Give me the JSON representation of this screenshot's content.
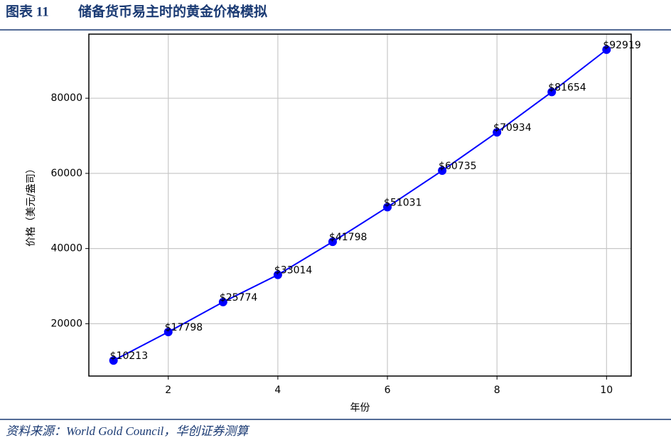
{
  "header": {
    "figure_no": "图表 11",
    "title": "储备货币易主时的黄金价格模拟"
  },
  "chart_data": {
    "type": "line",
    "x": [
      1,
      2,
      3,
      4,
      5,
      6,
      7,
      8,
      9,
      10
    ],
    "series": [
      {
        "color": "#0000ff",
        "values": [
          10213,
          17798,
          25774,
          33014,
          41798,
          51031,
          60735,
          70934,
          81654,
          92919
        ],
        "value_labels": [
          "$10213",
          "$17798",
          "$25774",
          "$33014",
          "$41798",
          "$51031",
          "$60735",
          "$70934",
          "$81654",
          "$92919"
        ]
      }
    ],
    "xlabel": "年份",
    "ylabel": "价格（美元/盎司）",
    "xlim": [
      0.55,
      10.45
    ],
    "ylim": [
      6078,
      97054
    ],
    "xticks": [
      2,
      4,
      6,
      8,
      10
    ],
    "yticks": [
      20000,
      40000,
      60000,
      80000
    ],
    "grid": true
  },
  "footer": {
    "source": "资料来源：World Gold Council，华创证券测算"
  }
}
